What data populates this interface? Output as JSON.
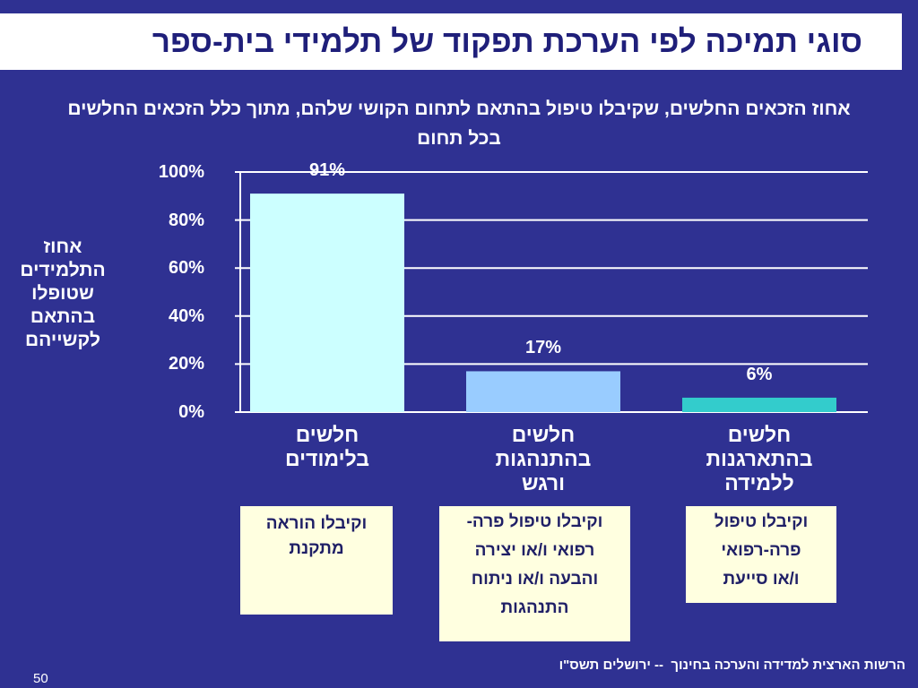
{
  "slide": {
    "title": "סוגי תמיכה לפי הערכת תפקוד של תלמידי בית-ספר",
    "footer": "הרשות הארצית למדידה והערכה בחינוך  -- ירושלים תשס\"ו",
    "page_number": "50"
  },
  "chart_data": {
    "type": "bar",
    "title": "אחוז הזכאים החלשים, שקיבלו טיפול בהתאם לתחום הקושי שלהם, מתוך כלל הזכאים החלשים\nבכל תחום",
    "xlabel": "",
    "ylabel": "אחוז\nהתלמידים\nשטופלו\nבהתאם\nלקשייהם",
    "categories": [
      "חלשים\nבלימודים",
      "חלשים\nבהתנהגות\nורגש",
      "חלשים\nבהתארגנות\nללמידה"
    ],
    "values": [
      91,
      17,
      6
    ],
    "data_labels": [
      "91%",
      "17%",
      "6%"
    ],
    "ylim": [
      0,
      100
    ],
    "yticks": [
      0,
      20,
      40,
      60,
      80,
      100
    ],
    "ytick_labels": [
      "0%",
      "20%",
      "40%",
      "60%",
      "80%",
      "100%"
    ],
    "grid": true,
    "bar_colors": [
      "#CCFFFF",
      "#99CCFF",
      "#33CCCC"
    ]
  },
  "support_boxes": [
    "וקיבלו הוראה\nמתקנת",
    "וקיבלו טיפול פרה-\nרפואי ו/או יצירה\nוהבעה ו/או ניתוח\nהתנהגות",
    "וקיבלו טיפול\nפרה-רפואי\nו/או סייעת"
  ],
  "colors": {
    "background": "#2F3192",
    "title_bar": "#FFFFFF",
    "title_text": "#1F1F7A",
    "box_fill": "#FFFFE0",
    "box_text": "#1F1F66",
    "text": "#FFFFFF"
  }
}
